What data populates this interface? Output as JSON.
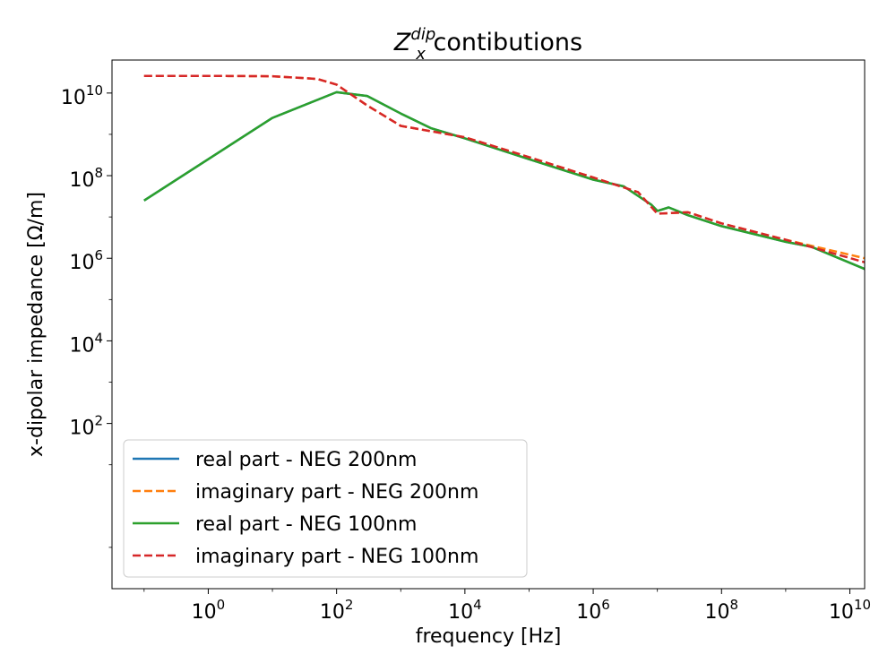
{
  "chart_data": {
    "type": "line",
    "title_parts": {
      "base": "Z",
      "sup": "dip",
      "sub": "x",
      "rest": " contibutions"
    },
    "xlabel": "frequency [Hz]",
    "ylabel": "x-dipolar impedance [Ω/m]",
    "xscale": "log",
    "yscale": "log",
    "xlim": [
      0.0316,
      17000000000.0
    ],
    "ylim": [
      0.01,
      63000000000.0
    ],
    "x_ticks": [
      {
        "value": 1,
        "base": "10",
        "exp": "0"
      },
      {
        "value": 100,
        "base": "10",
        "exp": "2"
      },
      {
        "value": 10000,
        "base": "10",
        "exp": "4"
      },
      {
        "value": 1000000,
        "base": "10",
        "exp": "6"
      },
      {
        "value": 100000000,
        "base": "10",
        "exp": "8"
      },
      {
        "value": 10000000000,
        "base": "10",
        "exp": "10"
      }
    ],
    "y_ticks": [
      {
        "value": 100,
        "base": "10",
        "exp": "2"
      },
      {
        "value": 10000,
        "base": "10",
        "exp": "4"
      },
      {
        "value": 1000000,
        "base": "10",
        "exp": "6"
      },
      {
        "value": 100000000,
        "base": "10",
        "exp": "8"
      },
      {
        "value": 10000000000,
        "base": "10",
        "exp": "10"
      }
    ],
    "legend_position": "lower-left",
    "series": [
      {
        "name": "real part - NEG 200nm",
        "color": "#1f77b4",
        "dash": "solid",
        "x": [
          0.1,
          1,
          10,
          100,
          300,
          1000,
          3000,
          10000,
          100000,
          1000000,
          3000000,
          8000000,
          10000000,
          15000000,
          30000000,
          100000000,
          1000000000,
          2500000000,
          17000000000.0
        ],
        "y": [
          25000000.0,
          250000000.0,
          2500000000.0,
          10500000000.0,
          8500000000.0,
          3200000000.0,
          1400000000.0,
          800000000.0,
          250000000.0,
          80000000.0,
          55000000.0,
          20000000.0,
          14000000.0,
          17000000.0,
          11000000.0,
          6000000.0,
          2500000.0,
          1900000.0,
          550000.0
        ]
      },
      {
        "name": "imaginary part - NEG 200nm",
        "color": "#ff7f0e",
        "dash": "dashed",
        "x": [
          0.1,
          1,
          10,
          50,
          100,
          300,
          1000,
          10000,
          100000,
          1000000,
          5000000,
          10000000,
          30000000,
          100000000,
          1000000000,
          17000000000.0
        ],
        "y": [
          26000000000.0,
          26000000000.0,
          25500000000.0,
          22000000000.0,
          16000000000.0,
          5000000000.0,
          1600000000.0,
          850000000.0,
          280000000.0,
          90000000.0,
          40000000.0,
          12000000.0,
          13000000.0,
          7000000.0,
          2800000.0,
          1000000.0
        ]
      },
      {
        "name": "real part - NEG 100nm",
        "color": "#2ca02c",
        "dash": "solid",
        "x": [
          0.1,
          1,
          10,
          100,
          300,
          1000,
          3000,
          10000,
          100000,
          1000000,
          3000000,
          8000000,
          10000000,
          15000000,
          30000000,
          100000000,
          1000000000,
          2500000000,
          17000000000.0
        ],
        "y": [
          25000000.0,
          250000000.0,
          2500000000.0,
          10500000000.0,
          8500000000.0,
          3200000000.0,
          1400000000.0,
          800000000.0,
          250000000.0,
          80000000.0,
          55000000.0,
          20000000.0,
          14000000.0,
          17000000.0,
          11000000.0,
          6000000.0,
          2500000.0,
          1900000.0,
          550000.0
        ]
      },
      {
        "name": "imaginary part - NEG 100nm",
        "color": "#d62728",
        "dash": "dashed",
        "x": [
          0.1,
          1,
          10,
          50,
          100,
          300,
          1000,
          10000,
          100000,
          1000000,
          5000000,
          10000000,
          30000000,
          100000000,
          1000000000,
          17000000000.0
        ],
        "y": [
          26000000000.0,
          26000000000.0,
          25500000000.0,
          22000000000.0,
          16000000000.0,
          5000000000.0,
          1600000000.0,
          850000000.0,
          280000000.0,
          90000000.0,
          40000000.0,
          12000000.0,
          13000000.0,
          7000000.0,
          2800000.0,
          800000.0
        ]
      }
    ]
  }
}
